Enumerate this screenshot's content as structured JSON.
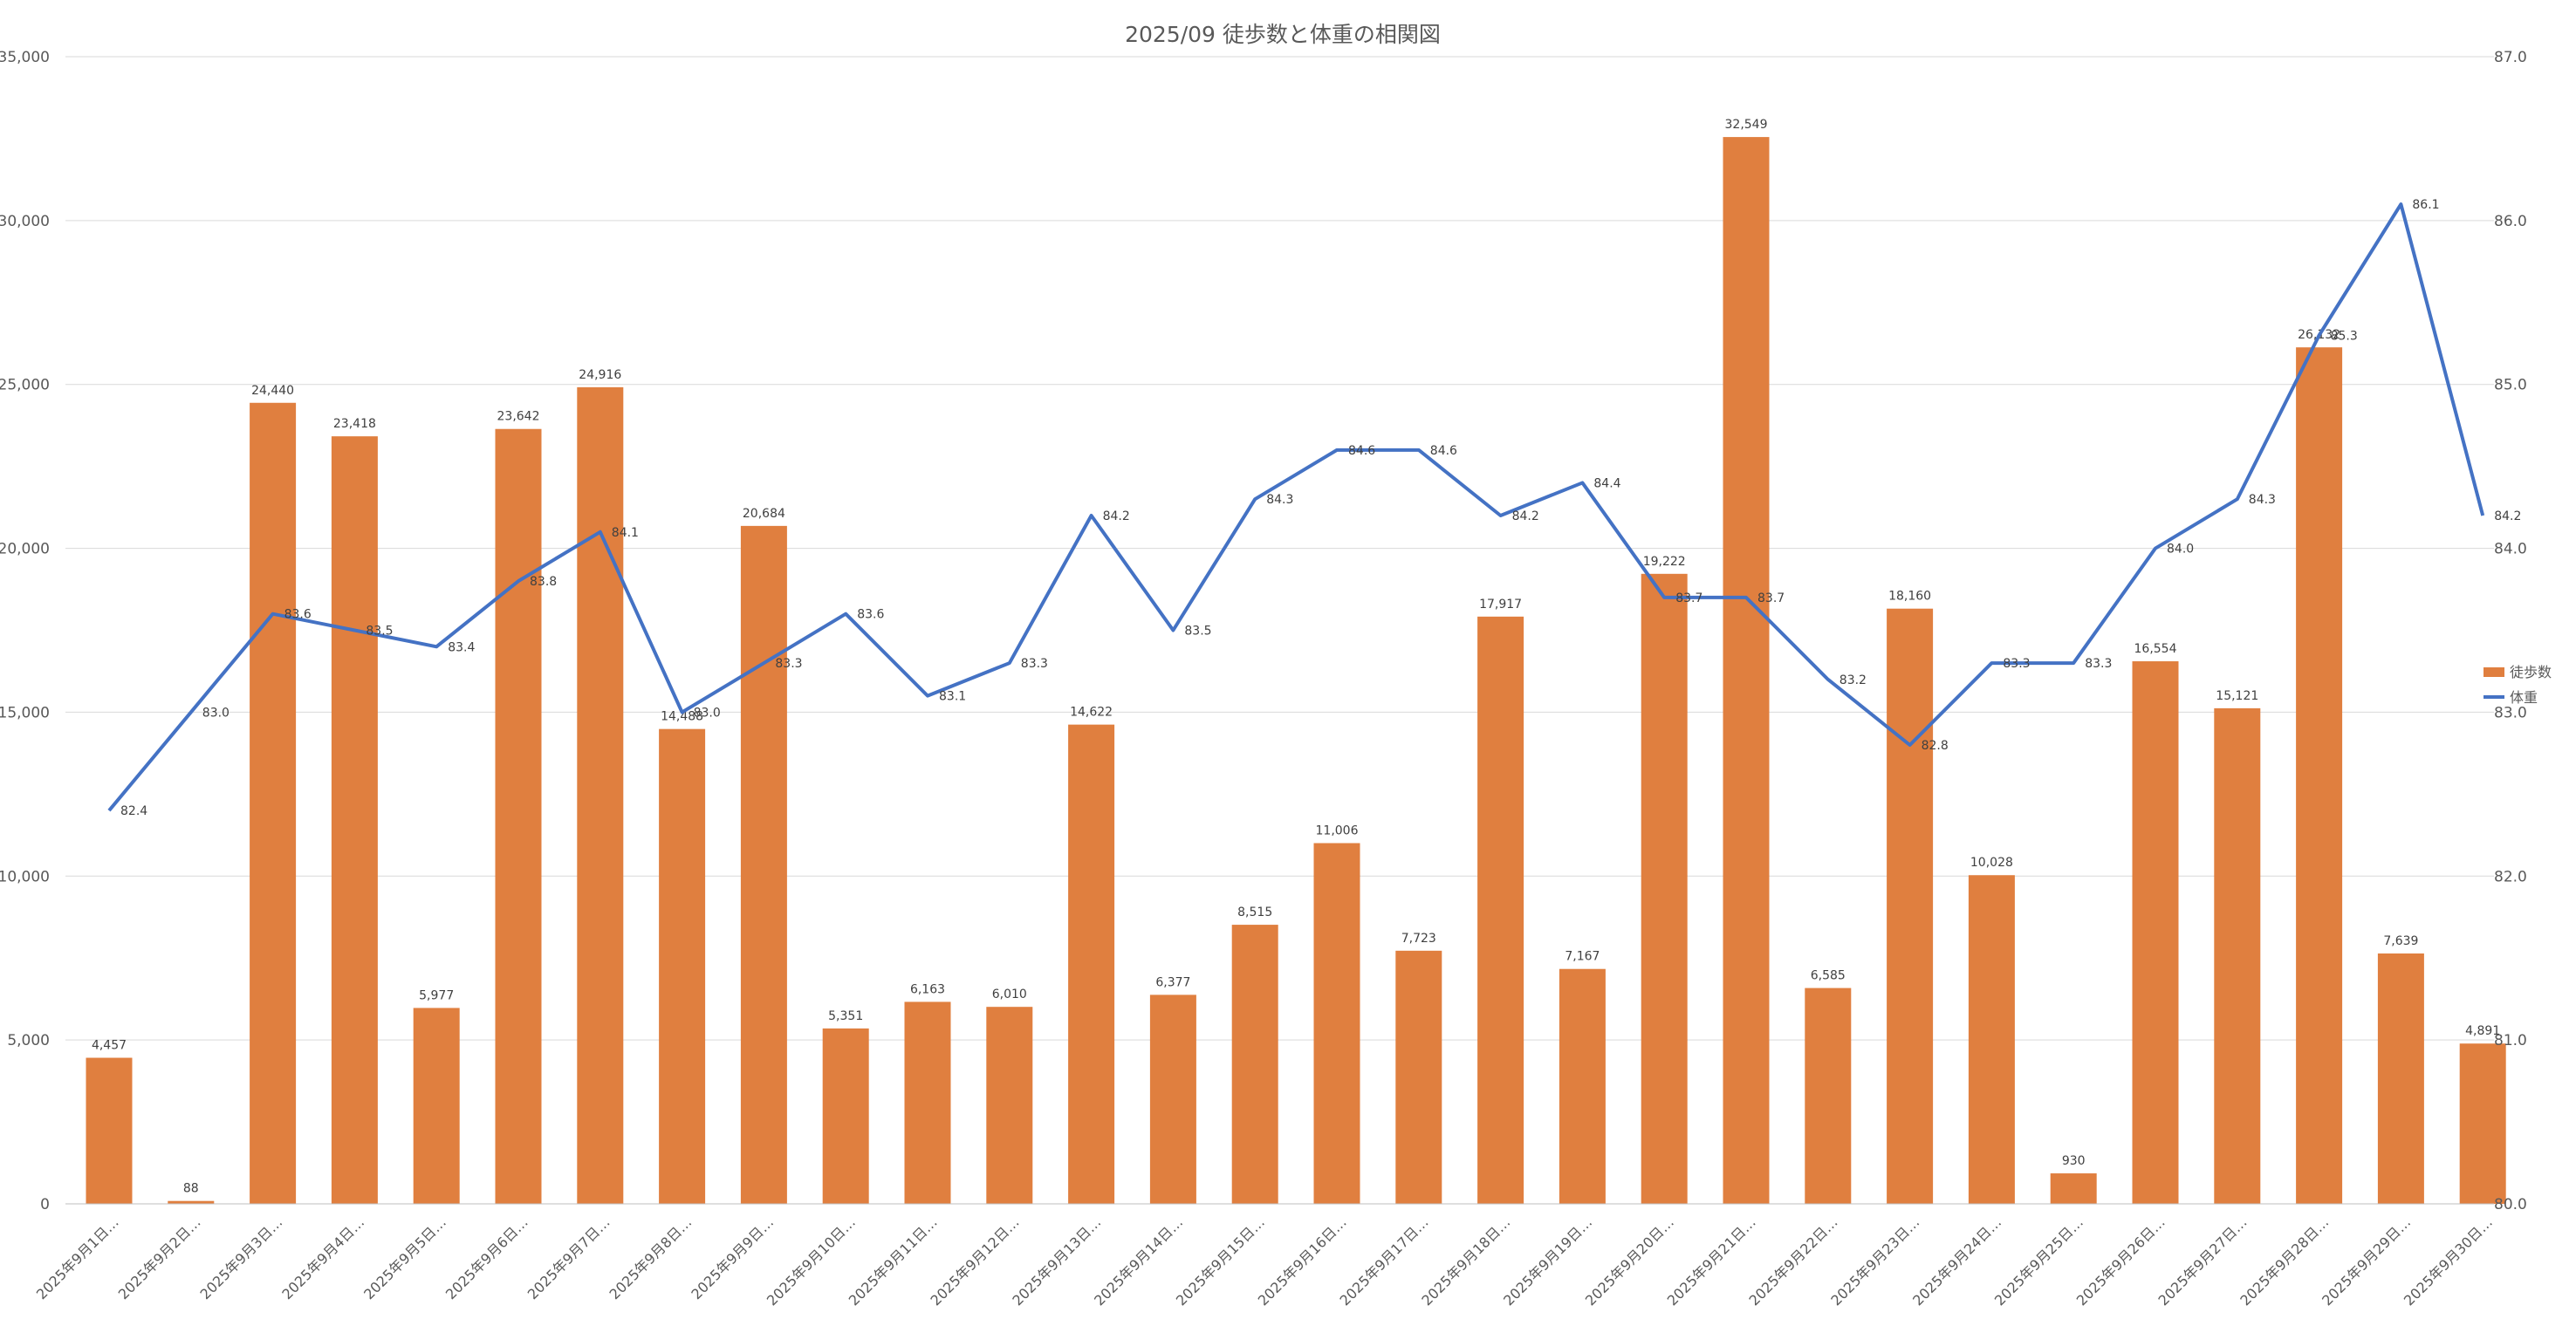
{
  "chart_data": {
    "type": "bar+line",
    "title": "2025/09 徒歩数と体重の相関図",
    "categories": [
      "2025年9月1日…",
      "2025年9月2日…",
      "2025年9月3日…",
      "2025年9月4日…",
      "2025年9月5日…",
      "2025年9月6日…",
      "2025年9月7日…",
      "2025年9月8日…",
      "2025年9月9日…",
      "2025年9月10日…",
      "2025年9月11日…",
      "2025年9月12日…",
      "2025年9月13日…",
      "2025年9月14日…",
      "2025年9月15日…",
      "2025年9月16日…",
      "2025年9月17日…",
      "2025年9月18日…",
      "2025年9月19日…",
      "2025年9月20日…",
      "2025年9月21日…",
      "2025年9月22日…",
      "2025年9月23日…",
      "2025年9月24日…",
      "2025年9月25日…",
      "2025年9月26日…",
      "2025年9月27日…",
      "2025年9月28日…",
      "2025年9月29日…",
      "2025年9月30日…"
    ],
    "series": [
      {
        "name": "徒歩数",
        "type": "bar",
        "axis": "left",
        "color": "#E07F3F",
        "values": [
          4457,
          88,
          24440,
          23418,
          5977,
          23642,
          24916,
          14488,
          20684,
          5351,
          6163,
          6010,
          14622,
          6377,
          8515,
          11006,
          7723,
          17917,
          7167,
          19222,
          32549,
          6585,
          18160,
          10028,
          930,
          16554,
          15121,
          26132,
          7639,
          4891
        ],
        "labels": [
          "4,457",
          "88",
          "24,440",
          "23,418",
          "5,977",
          "23,642",
          "24,916",
          "14,488",
          "20,684",
          "5,351",
          "6,163",
          "6,010",
          "14,622",
          "6,377",
          "8,515",
          "11,006",
          "7,723",
          "17,917",
          "7,167",
          "19,222",
          "32,549",
          "6,585",
          "18,160",
          "10,028",
          "930",
          "16,554",
          "15,121",
          "26,132",
          "7,639",
          "4,891"
        ]
      },
      {
        "name": "体重",
        "type": "line",
        "axis": "right",
        "color": "#4472C4",
        "values": [
          82.4,
          83.0,
          83.6,
          83.5,
          83.4,
          83.8,
          84.1,
          83.0,
          83.3,
          83.6,
          83.1,
          83.3,
          84.2,
          83.5,
          84.3,
          84.6,
          84.6,
          84.2,
          84.4,
          83.7,
          83.7,
          83.2,
          82.8,
          83.3,
          83.3,
          84.0,
          84.3,
          85.3,
          86.1,
          84.2
        ],
        "labels": [
          "82.4",
          "83.0",
          "83.6",
          "83.5",
          "83.4",
          "83.8",
          "84.1",
          "83.0",
          "83.3",
          "83.6",
          "83.1",
          "83.3",
          "84.2",
          "83.5",
          "84.3",
          "84.6",
          "84.6",
          "84.2",
          "84.4",
          "83.7",
          "83.7",
          "83.2",
          "82.8",
          "83.3",
          "83.3",
          "84.0",
          "84.3",
          "85.3",
          "86.1",
          "84.2"
        ]
      }
    ],
    "y_left": {
      "range": [
        0,
        35000
      ],
      "ticks": [
        0,
        5000,
        10000,
        15000,
        20000,
        25000,
        30000,
        35000
      ],
      "tick_labels": [
        "0",
        "5,000",
        "10,000",
        "15,000",
        "20,000",
        "25,000",
        "30,000",
        "35,000"
      ]
    },
    "y_right": {
      "range": [
        80.0,
        87.0
      ],
      "ticks": [
        80,
        81,
        82,
        83,
        84,
        85,
        86,
        87
      ],
      "tick_labels": [
        "80.0",
        "81.0",
        "82.0",
        "83.0",
        "84.0",
        "85.0",
        "86.0",
        "87.0"
      ]
    },
    "grid": true,
    "legend": {
      "position": "right",
      "entries": [
        "徒歩数",
        "体重"
      ]
    },
    "colors": {
      "bar": "#E07F3F",
      "line": "#4472C4",
      "grid": "#D9D9D9",
      "text": "#595959"
    }
  }
}
